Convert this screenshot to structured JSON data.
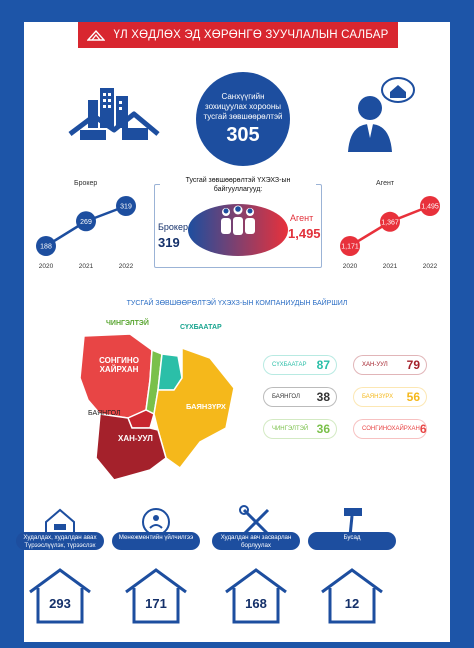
{
  "title": "ҮЛ ХӨДЛӨХ ЭД ХӨРӨНГӨ ЗУУЧЛАЛЫН САЛБАР",
  "center_stat": {
    "caption_line1": "Санхүүгийн",
    "caption_line2": "зохицуулах хорооны",
    "caption_line3": "тусгай зөвшөөрөлтэй",
    "value": "305"
  },
  "broker_chart": {
    "label": "Брокер",
    "years": [
      "2020",
      "2021",
      "2022"
    ],
    "values": [
      188,
      269,
      319
    ]
  },
  "agent_chart": {
    "label": "Агент",
    "years": [
      "2020",
      "2021",
      "2022"
    ],
    "values": [
      1171,
      1367,
      1495
    ],
    "value_labels": [
      "1,171",
      "1,367",
      "1,495"
    ]
  },
  "licensed_box": {
    "title_line1": "Тусгай зөвшөөрөлтэй ҮХЭХЗ-ын",
    "title_line2": "байгууллагууд:",
    "broker_label": "Брокер",
    "broker_value": "319",
    "agent_label": "Агент",
    "agent_value": "1,495"
  },
  "map": {
    "title": "ТУСГАЙ ЗӨВШӨӨРӨЛТЭЙ ҮХЭХЗ-ЫН КОМПАНИУДЫН БАЙРШИЛ",
    "labels": {
      "chingeltei": "ЧИНГЭЛТЭЙ",
      "sukhbaatar": "СҮХБААТАР",
      "songino_line1": "СОНГИНО",
      "songino_line2": "ХАЙРХАН",
      "bayangol": "БАЯНГОЛ",
      "bayanzurkh": "БАЯНЗҮРХ",
      "khan_uul": "ХАН-УУЛ"
    },
    "colors": {
      "songino": "#e84545",
      "bayangol": "#c8262f",
      "chingeltei": "#7ac04a",
      "sukhbaatar": "#2bbfa8",
      "bayanzurkh": "#f5b81b",
      "khan_uul": "#a4212b"
    }
  },
  "districts": [
    {
      "name": "СҮХБААТАР",
      "value": "87",
      "color": "#2bbfa8"
    },
    {
      "name": "БАЯНГОЛ",
      "value": "38",
      "color": "#333333"
    },
    {
      "name": "ЧИНГЭЛТЭЙ",
      "value": "36",
      "color": "#7ac04a"
    },
    {
      "name": "ХАН-УУЛ",
      "value": "79",
      "color": "#a4212b"
    },
    {
      "name": "БАЯНЗҮРХ",
      "value": "56",
      "color": "#f5b81b"
    },
    {
      "name": "СОНГИНОХАЙРХАН",
      "value": "6",
      "color": "#e84545"
    }
  ],
  "services": [
    {
      "label_line1": "Худалдах, худалдан авах",
      "label_line2": "Түрээслүүлэх, түрээслэх",
      "value": "293",
      "icon": "house-sale-icon"
    },
    {
      "label_line1": "Менежментийн үйлчилгээ",
      "label_line2": "",
      "value": "171",
      "icon": "management-icon"
    },
    {
      "label_line1": "Худалдан авч засварлан",
      "label_line2": "борлуулах",
      "value": "168",
      "icon": "tools-icon"
    },
    {
      "label_line1": "Бусад",
      "label_line2": "",
      "value": "12",
      "icon": "other-hammer-icon"
    }
  ]
}
